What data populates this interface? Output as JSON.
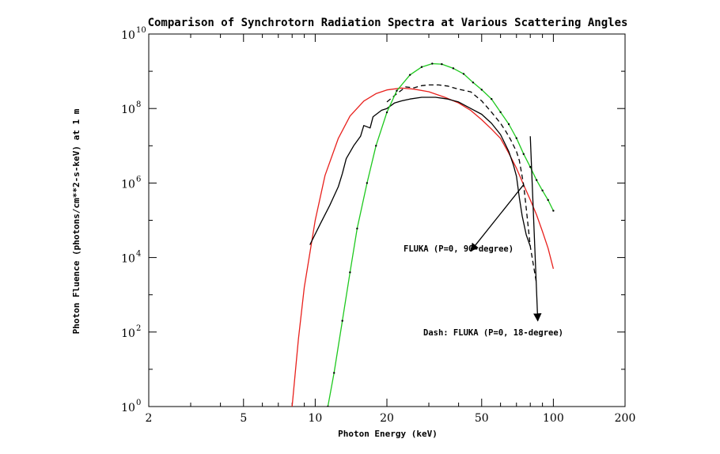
{
  "chart_data": {
    "type": "line",
    "title": "Comparison of Synchrotorn Radiation Spectra at Various Scattering Angles",
    "xlabel": "Photon Energy (keV)",
    "ylabel": "Photon Fluence (photons/cm**2-s-keV) at 1 m",
    "x_scale": "log",
    "y_scale": "log",
    "xlim": [
      2,
      200
    ],
    "ylim": [
      1,
      10000000000
    ],
    "x_ticks": [
      {
        "value": 2,
        "label": "2"
      },
      {
        "value": 5,
        "label": "5"
      },
      {
        "value": 10,
        "label": "10"
      },
      {
        "value": 20,
        "label": "20"
      },
      {
        "value": 50,
        "label": "50"
      },
      {
        "value": 100,
        "label": "100"
      },
      {
        "value": 200,
        "label": "200"
      }
    ],
    "y_ticks": [
      {
        "value": 1,
        "base": "10",
        "exp": "0"
      },
      {
        "value": 100,
        "base": "10",
        "exp": "2"
      },
      {
        "value": 10000,
        "base": "10",
        "exp": "4"
      },
      {
        "value": 1000000,
        "base": "10",
        "exp": "6"
      },
      {
        "value": 100000000,
        "base": "10",
        "exp": "8"
      },
      {
        "value": 10000000000,
        "base": "10",
        "exp": "10"
      }
    ],
    "series": [
      {
        "color": "#e8211d",
        "style": "solid",
        "x": [
          8.0,
          8.5,
          9.0,
          10.0,
          11.0,
          12.5,
          14.0,
          16.0,
          18.0,
          20.0,
          23.0,
          26.0,
          30.0,
          35.0,
          40.0,
          45.0,
          50.0,
          55.0,
          60.0,
          65.0,
          70.0,
          75.0,
          80.0,
          85.0,
          90.0,
          95.0,
          100.0
        ],
        "y": [
          1.0,
          63.0,
          1600.0,
          100000.0,
          1600000.0,
          15800000.0,
          63000000.0,
          158000000.0,
          251000000.0,
          316000000.0,
          355000000.0,
          331000000.0,
          282000000.0,
          200000000.0,
          141000000.0,
          89000000.0,
          50000000.0,
          28000000.0,
          15800000.0,
          6300000.0,
          2500000.0,
          891000.0,
          355000.0,
          141000.0,
          50100.0,
          17800.0,
          5000.0
        ]
      },
      {
        "color": "#000000",
        "style": "solid",
        "x": [
          9.5,
          10.5,
          11.5,
          12.5,
          13.0,
          13.5,
          14.5,
          15.5,
          16.0,
          17.0,
          17.5,
          19.0,
          20.0,
          21.5,
          23.0,
          25.0,
          28.0,
          32.0,
          36.0,
          40.0,
          45.0,
          50.0,
          55.0,
          60.0,
          65.0,
          68.0,
          70.0,
          72.0,
          74.0,
          77.0,
          80.0
        ],
        "y": [
          22000.0,
          80000.0,
          250000.0,
          800000.0,
          1800000.0,
          4500000.0,
          10000000.0,
          18000000.0,
          35000000.0,
          30000000.0,
          60000000.0,
          90000000.0,
          100000000.0,
          140000000.0,
          160000000.0,
          180000000.0,
          200000000.0,
          200000000.0,
          180000000.0,
          150000000.0,
          100000000.0,
          70000000.0,
          40000000.0,
          20000000.0,
          7000000.0,
          3000000.0,
          1500000.0,
          400000.0,
          130000.0,
          40000.0,
          20000.0
        ]
      },
      {
        "color": "#000000",
        "style": "dashed",
        "x": [
          20.0,
          22.0,
          24.0,
          26.0,
          28.0,
          30.0,
          33.0,
          36.0,
          40.0,
          45.0,
          50.0,
          55.0,
          60.0,
          63.0,
          66.0,
          70.0,
          72.0,
          75.0,
          77.0,
          80.0,
          85.0
        ],
        "y": [
          150000000.0,
          250000000.0,
          380000000.0,
          360000000.0,
          410000000.0,
          430000000.0,
          430000000.0,
          400000000.0,
          330000000.0,
          280000000.0,
          160000000.0,
          80000000.0,
          40000000.0,
          25000000.0,
          15000000.0,
          7000000.0,
          4000000.0,
          900000.0,
          200000.0,
          20000.0,
          2000.0
        ]
      },
      {
        "color": "#1ec81e",
        "style": "solid-dotted",
        "x": [
          11.3,
          12.0,
          13.0,
          14.0,
          15.0,
          16.5,
          18.0,
          20.0,
          22.0,
          25.0,
          28.0,
          31.0,
          34.0,
          38.0,
          42.0,
          46.0,
          50.0,
          55.0,
          60.0,
          65.0,
          70.0,
          75.0,
          80.0,
          85.0,
          90.0,
          95.0,
          100.0
        ],
        "y": [
          1.0,
          8.0,
          200.0,
          4000.0,
          60000.0,
          1000000.0,
          10000000.0,
          79000000.0,
          300000000.0,
          800000000.0,
          1300000000.0,
          1600000000.0,
          1550000000.0,
          1200000000.0,
          850000000.0,
          500000000.0,
          320000000.0,
          180000000.0,
          80000000.0,
          38000000.0,
          16000000.0,
          6000000.0,
          2700000.0,
          1200000.0,
          630000.0,
          350000.0,
          180000.0
        ]
      }
    ],
    "annotations": [
      {
        "text": "FLUKA (P=0, 90-degree)",
        "arrow_from": [
          75,
          900000
        ],
        "arrow_to": [
          45,
          15000
        ]
      },
      {
        "text": "Dash: FLUKA (P=0, 18-degree)",
        "arrow_from": [
          80,
          18000000
        ],
        "arrow_to": [
          86,
          200
        ]
      }
    ],
    "grid": false,
    "legend": "none"
  }
}
